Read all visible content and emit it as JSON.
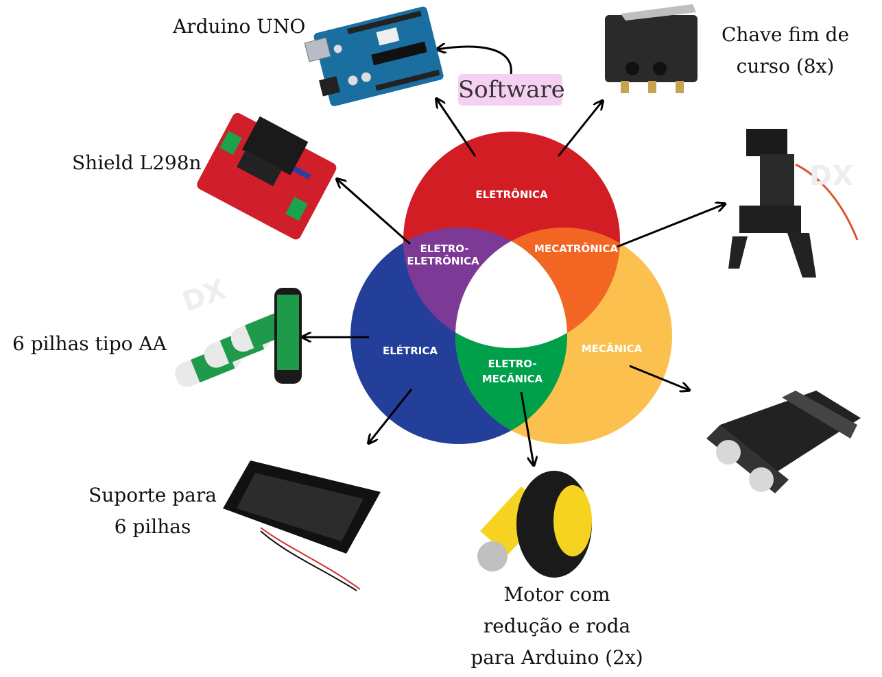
{
  "venn": {
    "eletronica": "ELETRÔNICA",
    "eletrica": "ELÉTRICA",
    "mecanica": "MECÂNICA",
    "eletro_eletronica_1": "ELETRO-",
    "eletro_eletronica_2": "ELETRÔNICA",
    "mecatronica": "MECATRÔNICA",
    "eletro_mecanica_1": "ELETRO-",
    "eletro_mecanica_2": "MECÂNICA"
  },
  "labels": {
    "arduino": "Arduino UNO",
    "software": "Software",
    "chave_1": "Chave fim de",
    "chave_2": "curso (8x)",
    "shield": "Shield L298n",
    "pilhas": "6 pilhas tipo AA",
    "suporte_1": "Suporte para",
    "suporte_2": "6 pilhas",
    "motor_1": "Motor com",
    "motor_2": "redução e roda",
    "motor_3": "para Arduino (2x)"
  },
  "product_images": {
    "arduino": "Arduino UNO board photo",
    "microswitch": "limit switch photo",
    "robot_gripper": "robotic gripper with servos photo",
    "shield": "L298n motor driver shield photo",
    "batteries": "AA batteries photo",
    "tank_chassis": "tracked robot chassis photo",
    "battery_holder": "6xAA battery holder photo",
    "motor_wheel": "gear motor with yellow wheel photo",
    "watermark": "DX"
  },
  "colors": {
    "eletronica": "#d31d25",
    "eletrica": "#243f99",
    "mecanica": "#fcc04e",
    "eletro_eletronica": "#7c3a96",
    "mecatronica": "#f26522",
    "eletro_mecanica": "#00a04b",
    "software_highlight": "#f6d0f2"
  }
}
